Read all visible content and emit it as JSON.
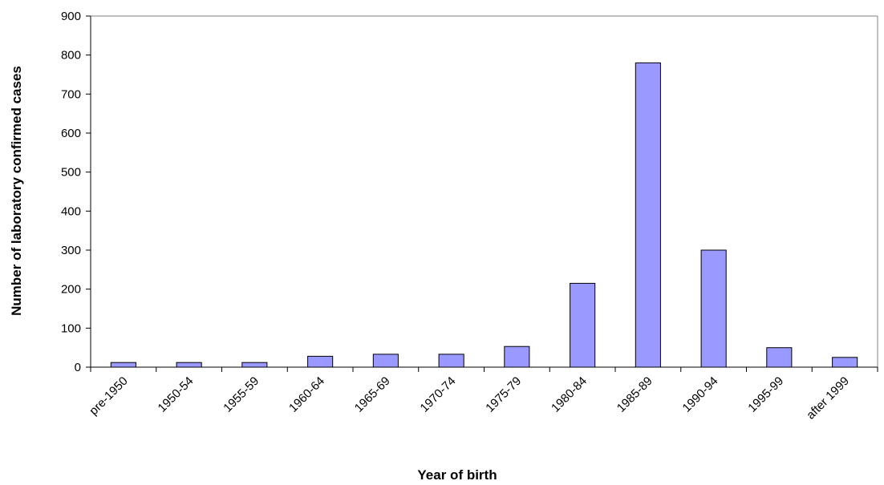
{
  "chart_data": {
    "type": "bar",
    "title": "",
    "xlabel": "Year of birth",
    "ylabel": "Number of laboratory confirmed cases",
    "categories": [
      "pre-1950",
      "1950-54",
      "1955-59",
      "1960-64",
      "1965-69",
      "1970-74",
      "1975-79",
      "1980-84",
      "1985-89",
      "1990-94",
      "1995-99",
      "after 1999"
    ],
    "values": [
      12,
      12,
      12,
      28,
      33,
      33,
      53,
      215,
      780,
      300,
      50,
      25
    ],
    "ylim": [
      0,
      900
    ],
    "yticks": [
      0,
      100,
      200,
      300,
      400,
      500,
      600,
      700,
      800,
      900
    ],
    "grid": false,
    "legend": "none",
    "bar_color": "#9999ff",
    "bar_stroke": "#000000"
  }
}
